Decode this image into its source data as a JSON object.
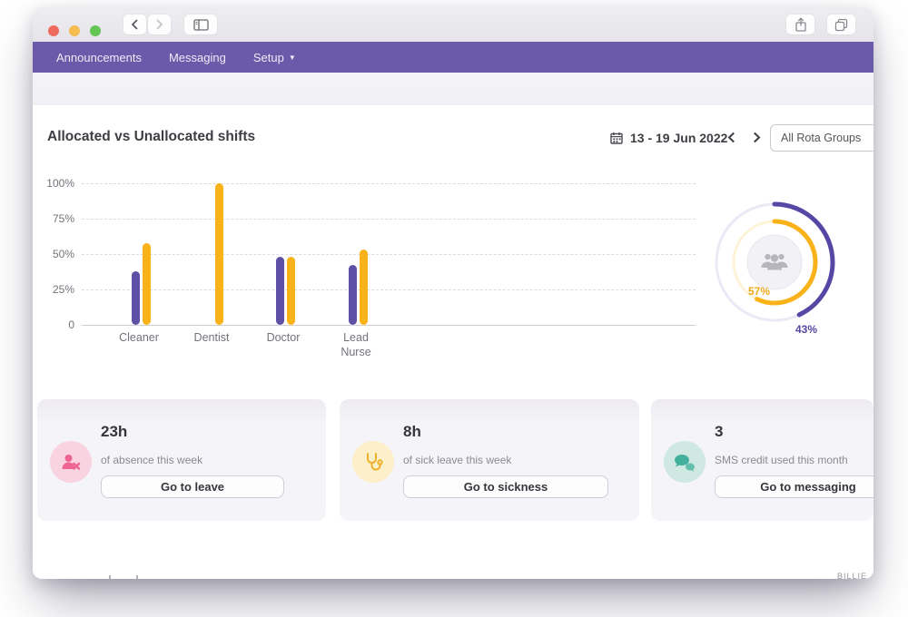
{
  "nav": {
    "items": [
      "Announcements",
      "Messaging",
      "Setup"
    ]
  },
  "panel": {
    "title": "Allocated vs Unallocated shifts",
    "date_range": "13 - 19 Jun 2022",
    "rota_filter_value": "All Rota Groups"
  },
  "chart_data": [
    {
      "type": "bar",
      "title": "Allocated vs Unallocated shifts",
      "categories": [
        "Cleaner",
        "Dentist",
        "Doctor",
        "Lead Nurse"
      ],
      "series": [
        {
          "name": "purple-series",
          "color": "#5e50a5",
          "values": [
            38,
            0,
            48,
            42
          ]
        },
        {
          "name": "yellow-series",
          "color": "#f9b21a",
          "values": [
            58,
            100,
            48,
            53
          ]
        }
      ],
      "ytick_labels": [
        "100%",
        "75%",
        "50%",
        "25%",
        "0"
      ],
      "ylim": [
        0,
        100
      ],
      "grid": "dashed-horizontal",
      "legend": "none"
    },
    {
      "type": "donut",
      "rings": [
        {
          "position": "outer",
          "label": "43%",
          "value": 43,
          "color": "#5747a5",
          "track_color": "#ebe9f5"
        },
        {
          "position": "inner",
          "label": "57%",
          "value": 57,
          "color": "#f9b21a",
          "track_color": "#fdf3d6"
        }
      ],
      "center_icon": "users",
      "start_angle": "top",
      "direction": "clockwise"
    }
  ],
  "cards": [
    {
      "value": "23h",
      "label": "of absence this week",
      "button_label": "Go to leave",
      "icon": "user-x-icon",
      "icon_bg": "#f9d3df",
      "icon_color": "#ee6492"
    },
    {
      "value": "8h",
      "label": "of sick leave this week",
      "button_label": "Go to sickness",
      "icon": "stethoscope-icon",
      "icon_bg": "#fcefca",
      "icon_color": "#f0b22a"
    },
    {
      "value": "3",
      "label": "SMS credit used this month",
      "button_label": "Go to messaging",
      "icon": "chat-bubbles-icon",
      "icon_bg": "#cfe9e2",
      "icon_color": "#42b09c"
    }
  ],
  "footer": {
    "clipped_text": "BILLIE"
  },
  "colors": {
    "navbar": "#6a5aa9",
    "titlebar_close": "#ee6a5f",
    "titlebar_minimize": "#f5bd4f",
    "titlebar_zoom": "#62c554"
  }
}
